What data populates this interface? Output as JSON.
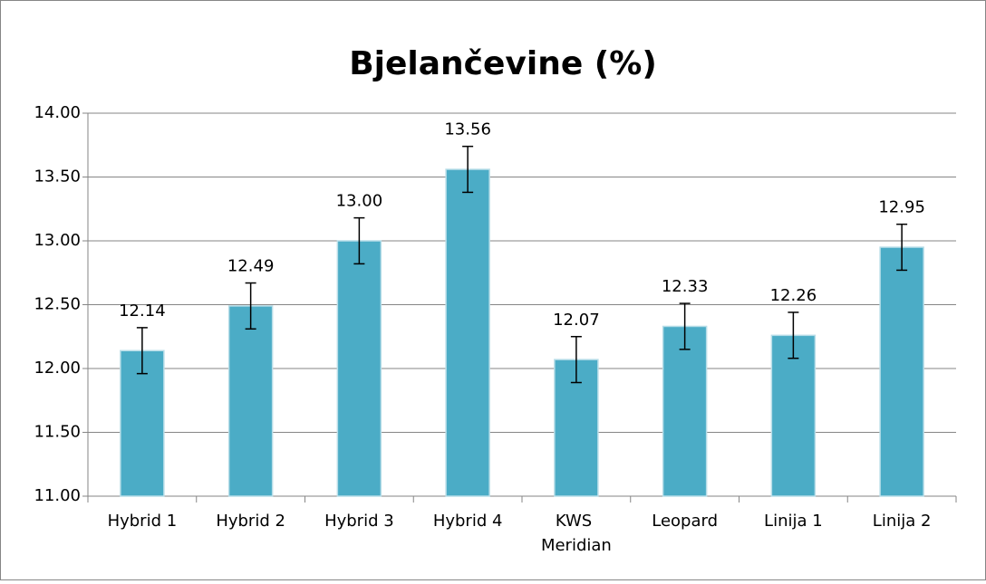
{
  "chart_data": {
    "type": "bar",
    "title": "Bjelančevine (%)",
    "categories": [
      "Hybrid 1",
      "Hybrid 2",
      "Hybrid 3",
      "Hybrid 4",
      "KWS Meridian",
      "Leopard",
      "Linija 1",
      "Linija 2"
    ],
    "values": [
      12.14,
      12.49,
      13.0,
      13.56,
      12.07,
      12.33,
      12.26,
      12.95
    ],
    "value_labels": [
      "12.14",
      "12.49",
      "13.00",
      "13.56",
      "12.07",
      "12.33",
      "12.26",
      "12.95"
    ],
    "errors": [
      0.18,
      0.18,
      0.18,
      0.18,
      0.18,
      0.18,
      0.18,
      0.18
    ],
    "color": "#4bacc6",
    "ylim": [
      11,
      14
    ],
    "yticks": [
      {
        "value": 11,
        "label": "11.00"
      },
      {
        "value": 11.5,
        "label": "11.50"
      },
      {
        "value": 12,
        "label": "12.00"
      },
      {
        "value": 12.5,
        "label": "12.50"
      },
      {
        "value": 13,
        "label": "13.00"
      },
      {
        "value": 13.5,
        "label": "13.50"
      },
      {
        "value": 14,
        "label": "14.00"
      }
    ],
    "grid": true
  }
}
